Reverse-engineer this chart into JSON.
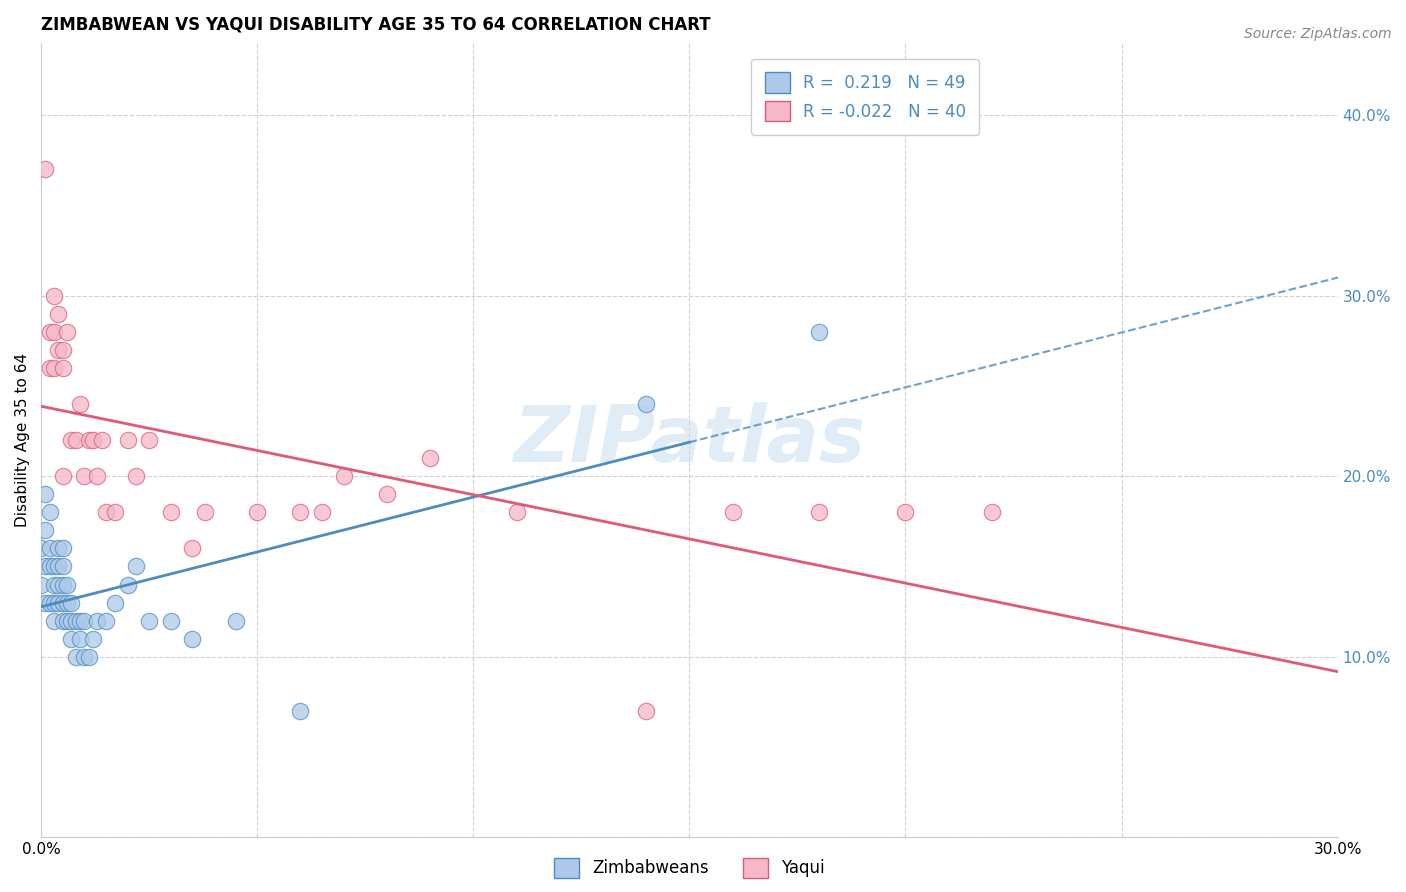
{
  "title": "ZIMBABWEAN VS YAQUI DISABILITY AGE 35 TO 64 CORRELATION CHART",
  "source": "Source: ZipAtlas.com",
  "ylabel": "Disability Age 35 to 64",
  "xlim": [
    0.0,
    0.3
  ],
  "ylim": [
    0.0,
    0.44
  ],
  "xticks": [
    0.0,
    0.05,
    0.1,
    0.15,
    0.2,
    0.25,
    0.3
  ],
  "yticks": [
    0.0,
    0.1,
    0.2,
    0.3,
    0.4
  ],
  "watermark": "ZIPatlas",
  "blue_color": "#4c8cbf",
  "pink_color": "#e05a78",
  "blue_fill": "#adc8e8",
  "pink_fill": "#f4b8c8",
  "legend_r1": "R =  0.219   N = 49",
  "legend_r2": "R = -0.022   N = 40",
  "zimbabweans_x": [
    0.0,
    0.0,
    0.001,
    0.001,
    0.001,
    0.001,
    0.002,
    0.002,
    0.002,
    0.002,
    0.003,
    0.003,
    0.003,
    0.003,
    0.004,
    0.004,
    0.004,
    0.004,
    0.005,
    0.005,
    0.005,
    0.005,
    0.005,
    0.006,
    0.006,
    0.006,
    0.007,
    0.007,
    0.007,
    0.008,
    0.008,
    0.009,
    0.009,
    0.01,
    0.01,
    0.011,
    0.012,
    0.013,
    0.015,
    0.017,
    0.02,
    0.022,
    0.025,
    0.03,
    0.035,
    0.045,
    0.06,
    0.14,
    0.18
  ],
  "zimbabweans_y": [
    0.14,
    0.16,
    0.13,
    0.15,
    0.17,
    0.19,
    0.13,
    0.15,
    0.16,
    0.18,
    0.13,
    0.15,
    0.14,
    0.12,
    0.13,
    0.14,
    0.16,
    0.15,
    0.13,
    0.14,
    0.15,
    0.16,
    0.12,
    0.12,
    0.14,
    0.13,
    0.12,
    0.13,
    0.11,
    0.1,
    0.12,
    0.11,
    0.12,
    0.1,
    0.12,
    0.1,
    0.11,
    0.12,
    0.12,
    0.13,
    0.14,
    0.15,
    0.12,
    0.12,
    0.11,
    0.12,
    0.07,
    0.24,
    0.28
  ],
  "yaqui_x": [
    0.001,
    0.002,
    0.002,
    0.003,
    0.003,
    0.003,
    0.004,
    0.004,
    0.005,
    0.005,
    0.005,
    0.006,
    0.007,
    0.008,
    0.009,
    0.01,
    0.011,
    0.012,
    0.013,
    0.014,
    0.015,
    0.017,
    0.02,
    0.022,
    0.025,
    0.03,
    0.035,
    0.038,
    0.05,
    0.06,
    0.065,
    0.07,
    0.08,
    0.09,
    0.11,
    0.14,
    0.16,
    0.18,
    0.2,
    0.22
  ],
  "yaqui_y": [
    0.37,
    0.26,
    0.28,
    0.26,
    0.28,
    0.3,
    0.27,
    0.29,
    0.27,
    0.26,
    0.2,
    0.28,
    0.22,
    0.22,
    0.24,
    0.2,
    0.22,
    0.22,
    0.2,
    0.22,
    0.18,
    0.18,
    0.22,
    0.2,
    0.22,
    0.18,
    0.16,
    0.18,
    0.18,
    0.18,
    0.18,
    0.2,
    0.19,
    0.21,
    0.18,
    0.07,
    0.18,
    0.18,
    0.18,
    0.18
  ],
  "title_fontsize": 12,
  "axis_label_fontsize": 11,
  "tick_fontsize": 11,
  "legend_fontsize": 12,
  "source_fontsize": 10
}
